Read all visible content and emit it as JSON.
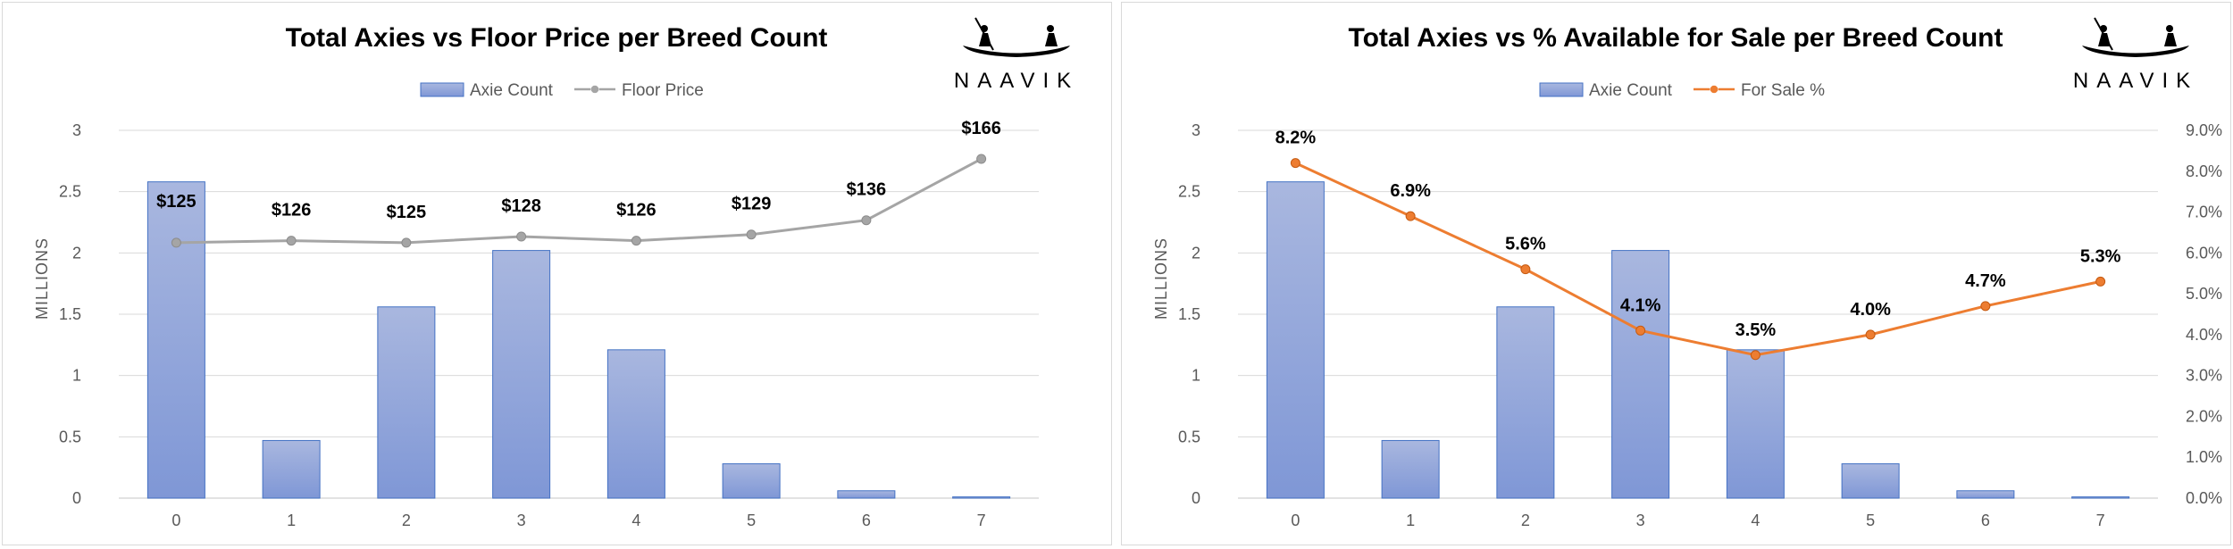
{
  "colors": {
    "bar_top": "#a9b7df",
    "bar_bottom": "#7f97d6",
    "bar_stroke": "#4472c4",
    "floor_line": "#a5a5a5",
    "forsale_line": "#ed7d31",
    "grid": "#d9d9d9"
  },
  "logo": {
    "text": "NAAVIK"
  },
  "chart_data": [
    {
      "type": "bar",
      "title": "Total Axies vs Floor Price per Breed Count",
      "categories": [
        "0",
        "1",
        "2",
        "3",
        "4",
        "5",
        "6",
        "7"
      ],
      "y_axis_title": "MILLIONS",
      "ylim": [
        0,
        3
      ],
      "y_ticks": [
        "0",
        "0.5",
        "1",
        "1.5",
        "2",
        "2.5",
        "3"
      ],
      "grid": true,
      "legend_position": "top",
      "series": [
        {
          "name": "Axie Count",
          "kind": "bar",
          "axis": "primary",
          "values": [
            2.58,
            0.47,
            1.56,
            2.02,
            1.21,
            0.28,
            0.06,
            0.01
          ]
        },
        {
          "name": "Floor Price",
          "kind": "line",
          "axis": "primary-scaled",
          "values": [
            125,
            126,
            125,
            128,
            126,
            129,
            136,
            166
          ],
          "labels": [
            "$125",
            "$126",
            "$125",
            "$128",
            "$126",
            "$129",
            "$136",
            "$166"
          ]
        }
      ]
    },
    {
      "type": "bar",
      "title": "Total Axies vs % Available for Sale per Breed Count",
      "categories": [
        "0",
        "1",
        "2",
        "3",
        "4",
        "5",
        "6",
        "7"
      ],
      "y_axis_title": "MILLIONS",
      "ylim": [
        0,
        3
      ],
      "y_ticks": [
        "0",
        "0.5",
        "1",
        "1.5",
        "2",
        "2.5",
        "3"
      ],
      "y2lim": [
        0,
        9
      ],
      "y2_ticks": [
        "0.0%",
        "1.0%",
        "2.0%",
        "3.0%",
        "4.0%",
        "5.0%",
        "6.0%",
        "7.0%",
        "8.0%",
        "9.0%"
      ],
      "grid": true,
      "legend_position": "top",
      "series": [
        {
          "name": "Axie Count",
          "kind": "bar",
          "axis": "primary",
          "values": [
            2.58,
            0.47,
            1.56,
            2.02,
            1.21,
            0.28,
            0.06,
            0.01
          ]
        },
        {
          "name": "For Sale %",
          "kind": "line",
          "axis": "secondary",
          "values": [
            8.2,
            6.9,
            5.6,
            4.1,
            3.5,
            4.0,
            4.7,
            5.3
          ],
          "labels": [
            "8.2%",
            "6.9%",
            "5.6%",
            "4.1%",
            "3.5%",
            "4.0%",
            "4.7%",
            "5.3%"
          ]
        }
      ]
    }
  ]
}
